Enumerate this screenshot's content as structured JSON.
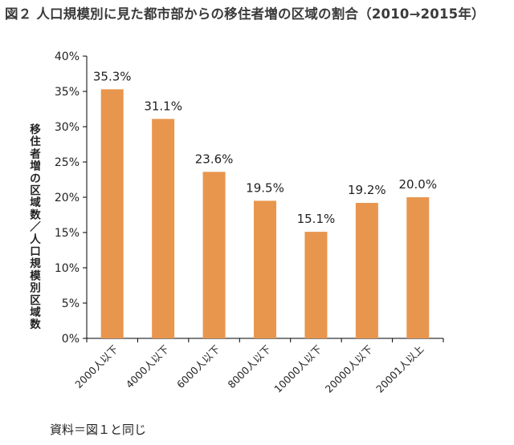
{
  "title": "図２ 人口規模別に見た都市部からの移住者増の区域の割合（2010→2015年）",
  "source": "資料＝図１と同じ",
  "chart_data": {
    "type": "bar",
    "categories": [
      "2000人以下",
      "4000人以下",
      "6000人以下",
      "8000人以下",
      "10000人以下",
      "20000人以下",
      "20001人以上"
    ],
    "values": [
      35.3,
      31.1,
      23.6,
      19.5,
      15.1,
      19.2,
      20.0
    ],
    "data_labels": [
      "35.3%",
      "31.1%",
      "23.6%",
      "19.5%",
      "15.1%",
      "19.2%",
      "20.0%"
    ],
    "ylabel": "移住者増の区域数／人口規模別区域数",
    "ylim": [
      0,
      40
    ],
    "yticks": [
      0,
      5,
      10,
      15,
      20,
      25,
      30,
      35,
      40
    ],
    "ytick_labels": [
      "0%",
      "5%",
      "10%",
      "15%",
      "20%",
      "25%",
      "30%",
      "35%",
      "40%"
    ],
    "bar_color": "#E8964E",
    "axis_color": "#000000",
    "grid": false,
    "legend": "none"
  }
}
